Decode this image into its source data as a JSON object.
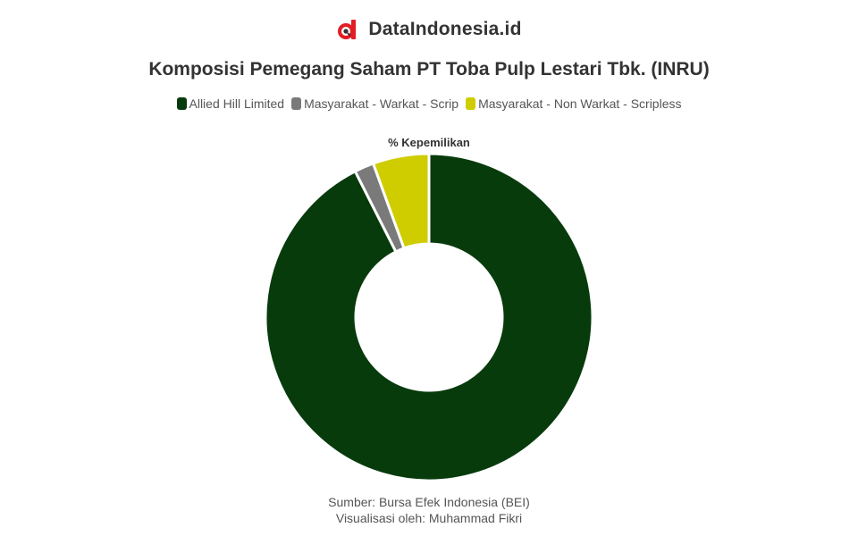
{
  "brand": {
    "name": "DataIndonesia.id",
    "logo_icon": "datandonesia-logo-icon",
    "logo_color": "#e21d24"
  },
  "chart_data": {
    "type": "pie",
    "title": "Komposisi Pemegang Saham PT Toba Pulp Lestari Tbk. (INRU)",
    "subtitle": "% Kepemilikan",
    "legend_position": "top",
    "categories": [
      "Allied Hill Limited",
      "Masyarakat - Warkat - Scrip",
      "Masyarakat - Non Warkat - Scripless"
    ],
    "values": [
      92.54,
      1.92,
      5.54
    ],
    "colors": [
      "#073b0c",
      "#7a7a7a",
      "#cfcc00"
    ]
  },
  "footer": {
    "source": "Sumber: Bursa Efek Indonesia (BEI)",
    "credit": "Visualisasi oleh: Muhammad Fikri"
  }
}
